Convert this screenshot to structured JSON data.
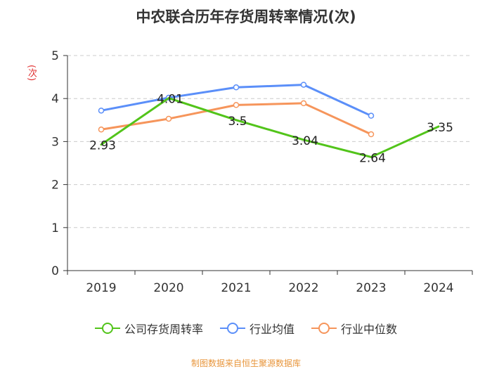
{
  "title": "中农联合历年存货周转率情况(次)",
  "source": "制图数据来自恒生聚源数据库",
  "colors": {
    "company": "#52c41a",
    "industry_avg": "#5b8ff9",
    "industry_median": "#f6955b",
    "axis": "#333333",
    "grid": "#cccccc",
    "unit_label": "#e03030",
    "source": "#e8963c"
  },
  "chart_data": {
    "type": "line",
    "title": "中农联合历年存货周转率情况(次)",
    "ylabel": "(次)",
    "xlabel": "",
    "ylim": [
      0,
      5
    ],
    "yticks": [
      "0",
      "1",
      "2",
      "3",
      "4",
      "5"
    ],
    "categories": [
      "2019",
      "2020",
      "2021",
      "2022",
      "2023",
      "2024"
    ],
    "grid": true,
    "legend_position": "bottom",
    "series": [
      {
        "key": "company",
        "name": "公司存货周转率",
        "values": [
          2.93,
          4.01,
          3.5,
          3.04,
          2.64,
          3.35
        ],
        "labels": [
          "2.93",
          "4.01",
          "3.5",
          "3.04",
          "2.64",
          "3.35"
        ],
        "show_markers": false
      },
      {
        "key": "industry_avg",
        "name": "行业均值",
        "values": [
          3.72,
          4.02,
          4.26,
          4.32,
          3.6,
          null
        ],
        "show_markers": true
      },
      {
        "key": "industry_median",
        "name": "行业中位数",
        "values": [
          3.28,
          3.53,
          3.85,
          3.89,
          3.17,
          null
        ],
        "show_markers": true
      }
    ]
  }
}
